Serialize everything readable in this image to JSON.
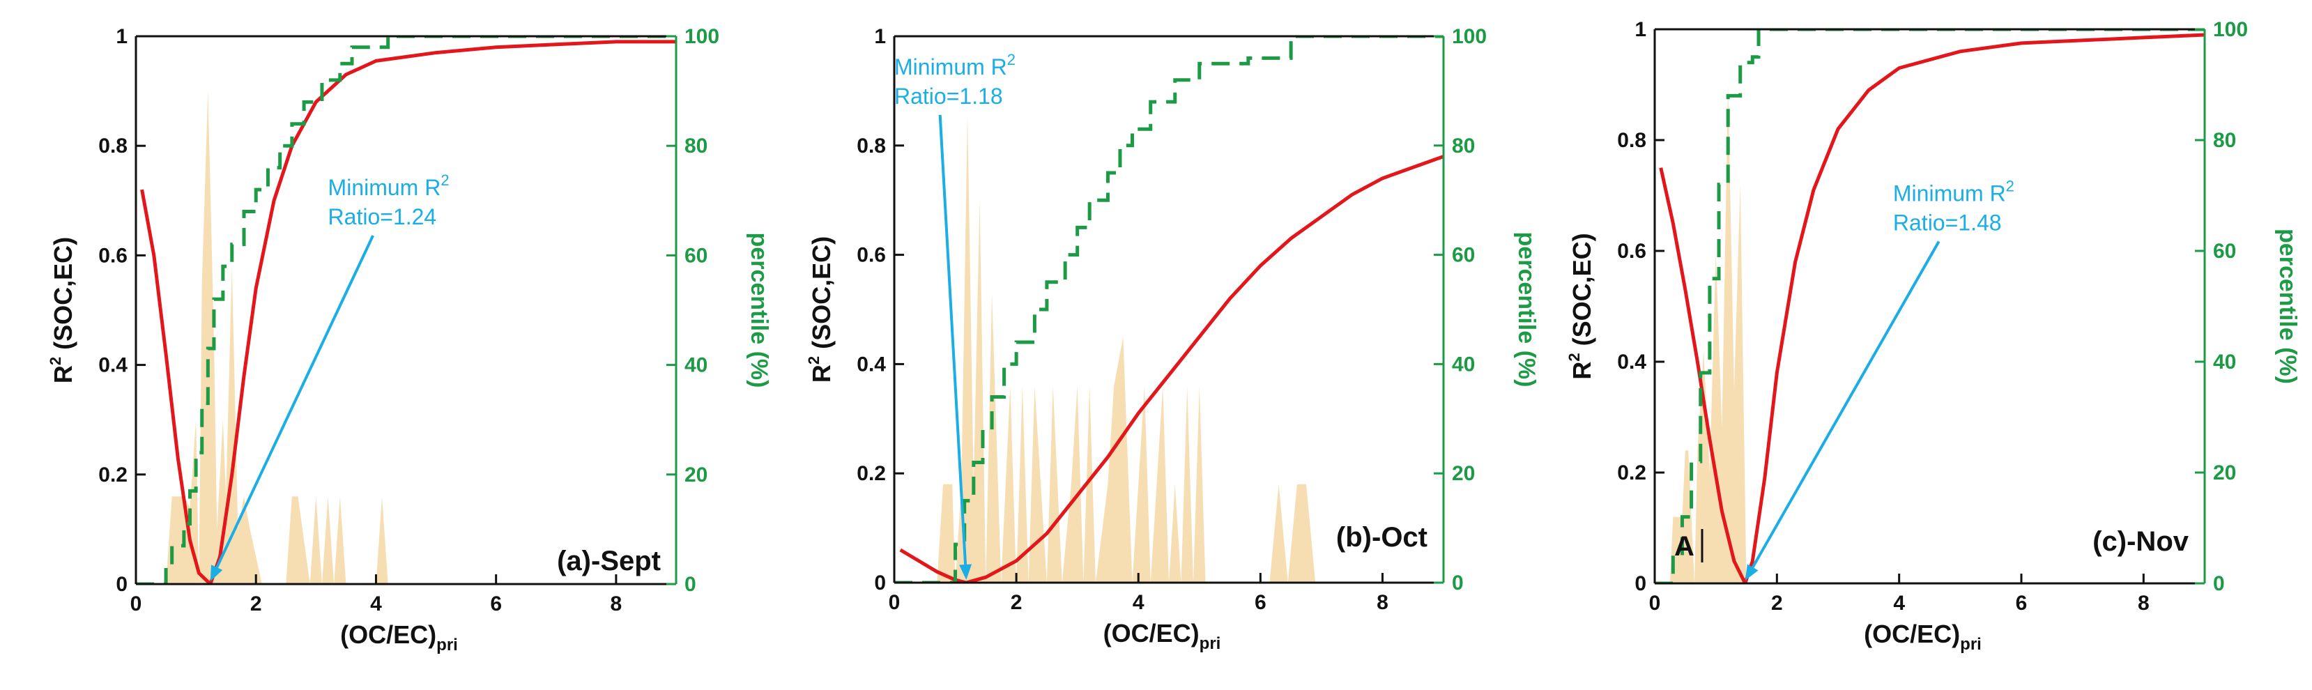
{
  "colors": {
    "r2_curve": "#e3161b",
    "percentile_curve": "#1d9a45",
    "histogram": "#f7deb2",
    "annotation": "#1aaee5",
    "axis": "#111111"
  },
  "chart_data": [
    {
      "type": "line",
      "title": "(a)-Sept",
      "xlabel": "(OC/EC)",
      "xlabel_sub": "pri",
      "ylabel": "R",
      "ylabel_sup": "2",
      "ylabel_rest": " (SOC,EC)",
      "y2label": "percentile (%)",
      "xlim": [
        0,
        9
      ],
      "ylim": [
        0,
        1
      ],
      "y2lim": [
        0,
        100
      ],
      "xticks": [
        0,
        2,
        4,
        6,
        8
      ],
      "yticks": [
        0.0,
        0.2,
        0.4,
        0.6,
        0.8,
        1.0
      ],
      "y2ticks": [
        0,
        20,
        40,
        60,
        80,
        100
      ],
      "annotation": {
        "line1": "Minimum R",
        "line1_sup": "2",
        "line2": "Ratio=1.24",
        "x": 1.24,
        "y": 0.0,
        "text_x": 3.2,
        "text_y": 0.71
      },
      "extra_label": "",
      "series": [
        {
          "name": "R2",
          "axis": "left",
          "style": "solid",
          "x": [
            0.1,
            0.3,
            0.5,
            0.7,
            0.9,
            1.05,
            1.24,
            1.4,
            1.6,
            1.8,
            2.0,
            2.3,
            2.6,
            3.0,
            3.5,
            4.0,
            5.0,
            6.0,
            7.0,
            8.0,
            9.0
          ],
          "y": [
            0.72,
            0.6,
            0.42,
            0.23,
            0.08,
            0.02,
            0.0,
            0.05,
            0.2,
            0.38,
            0.54,
            0.7,
            0.8,
            0.88,
            0.93,
            0.955,
            0.97,
            0.98,
            0.985,
            0.99,
            0.99
          ]
        },
        {
          "name": "percentile",
          "axis": "right",
          "style": "dashed",
          "x": [
            0.0,
            0.5,
            0.5,
            0.6,
            0.6,
            0.8,
            0.8,
            0.9,
            0.9,
            1.0,
            1.0,
            1.1,
            1.1,
            1.2,
            1.2,
            1.3,
            1.3,
            1.45,
            1.45,
            1.6,
            1.6,
            1.8,
            1.8,
            2.0,
            2.0,
            2.2,
            2.2,
            2.4,
            2.4,
            2.6,
            2.6,
            2.8,
            2.8,
            3.1,
            3.1,
            3.4,
            3.4,
            3.6,
            3.6,
            4.2,
            4.2,
            9.0
          ],
          "y": [
            0,
            0,
            3,
            3,
            7,
            7,
            11,
            11,
            17,
            17,
            24,
            24,
            33,
            33,
            43,
            43,
            52,
            52,
            58,
            58,
            62,
            62,
            68,
            68,
            72,
            72,
            76,
            76,
            80,
            80,
            84,
            84,
            88,
            88,
            92,
            92,
            95,
            95,
            98,
            98,
            100,
            100
          ]
        },
        {
          "name": "histogram",
          "axis": "left",
          "style": "fill",
          "x": [
            0.5,
            0.6,
            0.8,
            0.9,
            1.0,
            1.05,
            1.1,
            1.2,
            1.3,
            1.35,
            1.45,
            1.5,
            1.6,
            1.7,
            1.8,
            1.9,
            2.1,
            2.3,
            2.5,
            2.6,
            2.7,
            2.9,
            3.0,
            3.1,
            3.2,
            3.3,
            3.4,
            3.5,
            3.6,
            3.7,
            4.0,
            4.1,
            4.2,
            4.3,
            9.0
          ],
          "y": [
            0.0,
            0.16,
            0.16,
            0.14,
            0.3,
            0.0,
            0.55,
            0.9,
            0.45,
            0.1,
            0.3,
            0.16,
            0.58,
            0.1,
            0.16,
            0.1,
            0.0,
            0.0,
            0.0,
            0.16,
            0.16,
            0.0,
            0.16,
            0.0,
            0.16,
            0.0,
            0.16,
            0.0,
            0.0,
            0.0,
            0.0,
            0.16,
            0.0,
            0.0,
            0.0
          ]
        }
      ]
    },
    {
      "type": "line",
      "title": "(b)-Oct",
      "xlabel": "(OC/EC)",
      "xlabel_sub": "pri",
      "ylabel": "R",
      "ylabel_sup": "2",
      "ylabel_rest": " (SOC,EC)",
      "y2label": "percentile (%)",
      "xlim": [
        0,
        9
      ],
      "ylim": [
        0,
        1
      ],
      "y2lim": [
        0,
        100
      ],
      "xticks": [
        0,
        2,
        4,
        6,
        8
      ],
      "yticks": [
        0.0,
        0.2,
        0.4,
        0.6,
        0.8,
        1.0
      ],
      "y2ticks": [
        0,
        20,
        40,
        60,
        80,
        100
      ],
      "annotation": {
        "line1": "Minimum R",
        "line1_sup": "2",
        "line2": "Ratio=1.18",
        "x": 1.18,
        "y": 0.0,
        "text_x": 0.0,
        "text_y": 0.93
      },
      "extra_label": "",
      "series": [
        {
          "name": "R2",
          "axis": "left",
          "style": "solid",
          "x": [
            0.1,
            0.4,
            0.7,
            1.0,
            1.18,
            1.5,
            2.0,
            2.5,
            3.0,
            3.5,
            4.0,
            4.5,
            5.0,
            5.5,
            6.0,
            6.5,
            7.0,
            7.5,
            8.0,
            8.5,
            9.0
          ],
          "y": [
            0.06,
            0.04,
            0.02,
            0.005,
            0.0,
            0.01,
            0.04,
            0.09,
            0.16,
            0.23,
            0.31,
            0.38,
            0.45,
            0.52,
            0.58,
            0.63,
            0.67,
            0.71,
            0.74,
            0.76,
            0.78
          ]
        },
        {
          "name": "percentile",
          "axis": "right",
          "style": "dashed",
          "x": [
            0.0,
            1.0,
            1.0,
            1.15,
            1.15,
            1.3,
            1.3,
            1.45,
            1.45,
            1.6,
            1.6,
            1.8,
            1.8,
            2.0,
            2.0,
            2.3,
            2.3,
            2.5,
            2.5,
            2.8,
            2.8,
            3.0,
            3.0,
            3.2,
            3.2,
            3.5,
            3.5,
            3.7,
            3.7,
            3.9,
            3.9,
            4.2,
            4.2,
            4.6,
            4.6,
            5.0,
            5.0,
            5.8,
            5.8,
            6.5,
            6.5,
            6.85,
            6.85,
            9.0
          ],
          "y": [
            0,
            0,
            7,
            7,
            15,
            15,
            22,
            22,
            28,
            28,
            34,
            34,
            40,
            40,
            44,
            44,
            50,
            50,
            55,
            55,
            60,
            60,
            65,
            65,
            70,
            70,
            75,
            75,
            80,
            80,
            83,
            83,
            88,
            88,
            92,
            92,
            95,
            95,
            96,
            96,
            100,
            100,
            100,
            100
          ]
        },
        {
          "name": "histogram",
          "axis": "left",
          "style": "fill",
          "x": [
            0.7,
            0.8,
            0.95,
            1.0,
            1.1,
            1.2,
            1.3,
            1.4,
            1.5,
            1.6,
            1.7,
            1.75,
            1.9,
            2.0,
            2.1,
            2.2,
            2.3,
            2.4,
            2.5,
            2.6,
            2.75,
            2.9,
            3.0,
            3.1,
            3.2,
            3.3,
            3.5,
            3.6,
            3.75,
            3.9,
            4.0,
            4.1,
            4.2,
            4.3,
            4.4,
            4.5,
            4.6,
            4.7,
            4.8,
            4.9,
            5.0,
            5.1,
            6.15,
            6.3,
            6.45,
            6.6,
            6.75,
            6.9,
            9.0
          ],
          "y": [
            0.0,
            0.18,
            0.18,
            0.0,
            0.18,
            0.86,
            0.18,
            0.7,
            0.0,
            0.53,
            0.18,
            0.0,
            0.36,
            0.0,
            0.36,
            0.0,
            0.36,
            0.18,
            0.0,
            0.36,
            0.0,
            0.18,
            0.36,
            0.0,
            0.36,
            0.0,
            0.18,
            0.36,
            0.45,
            0.0,
            0.18,
            0.36,
            0.0,
            0.18,
            0.36,
            0.0,
            0.18,
            0.0,
            0.36,
            0.0,
            0.36,
            0.0,
            0.0,
            0.18,
            0.0,
            0.18,
            0.18,
            0.0,
            0.0
          ]
        }
      ]
    },
    {
      "type": "line",
      "title": "(c)-Nov",
      "xlabel": "(OC/EC)",
      "xlabel_sub": "pri",
      "ylabel": "R",
      "ylabel_sup": "2",
      "ylabel_rest": " (SOC,EC)",
      "y2label": "percentile (%)",
      "xlim": [
        0,
        9
      ],
      "ylim": [
        0,
        1
      ],
      "y2lim": [
        0,
        100
      ],
      "xticks": [
        0,
        2,
        4,
        6,
        8
      ],
      "yticks": [
        0.0,
        0.2,
        0.4,
        0.6,
        0.8,
        1.0
      ],
      "y2ticks": [
        0,
        20,
        40,
        60,
        80,
        100
      ],
      "annotation": {
        "line1": "Minimum R",
        "line1_sup": "2",
        "line2": "Ratio=1.48",
        "x": 1.48,
        "y": 0.0,
        "text_x": 3.9,
        "text_y": 0.69
      },
      "extra_label": "A",
      "series": [
        {
          "name": "R2",
          "axis": "left",
          "style": "solid",
          "x": [
            0.1,
            0.3,
            0.5,
            0.7,
            0.9,
            1.1,
            1.3,
            1.48,
            1.6,
            1.8,
            2.0,
            2.3,
            2.6,
            3.0,
            3.5,
            4.0,
            5.0,
            6.0,
            7.0,
            8.0,
            9.0
          ],
          "y": [
            0.75,
            0.65,
            0.53,
            0.4,
            0.26,
            0.13,
            0.04,
            0.0,
            0.04,
            0.19,
            0.38,
            0.58,
            0.71,
            0.82,
            0.89,
            0.93,
            0.96,
            0.975,
            0.98,
            0.985,
            0.99
          ]
        },
        {
          "name": "percentile",
          "axis": "right",
          "style": "dashed",
          "x": [
            0.0,
            0.3,
            0.3,
            0.45,
            0.45,
            0.6,
            0.6,
            0.75,
            0.75,
            0.9,
            0.9,
            1.05,
            1.05,
            1.2,
            1.2,
            1.4,
            1.4,
            1.6,
            1.6,
            1.7,
            1.7,
            9.0
          ],
          "y": [
            0,
            0,
            5,
            5,
            12,
            12,
            22,
            22,
            38,
            38,
            55,
            55,
            72,
            72,
            88,
            88,
            94,
            94,
            95,
            95,
            100,
            100
          ]
        },
        {
          "name": "histogram",
          "axis": "left",
          "style": "fill",
          "x": [
            0.25,
            0.3,
            0.45,
            0.5,
            0.55,
            0.65,
            0.7,
            0.8,
            0.9,
            1.0,
            1.1,
            1.2,
            1.3,
            1.4,
            1.5,
            9.0
          ],
          "y": [
            0.0,
            0.12,
            0.12,
            0.24,
            0.24,
            0.0,
            0.24,
            0.42,
            0.2,
            0.6,
            0.28,
            0.9,
            0.35,
            0.72,
            0.0,
            0.0
          ]
        }
      ]
    }
  ]
}
